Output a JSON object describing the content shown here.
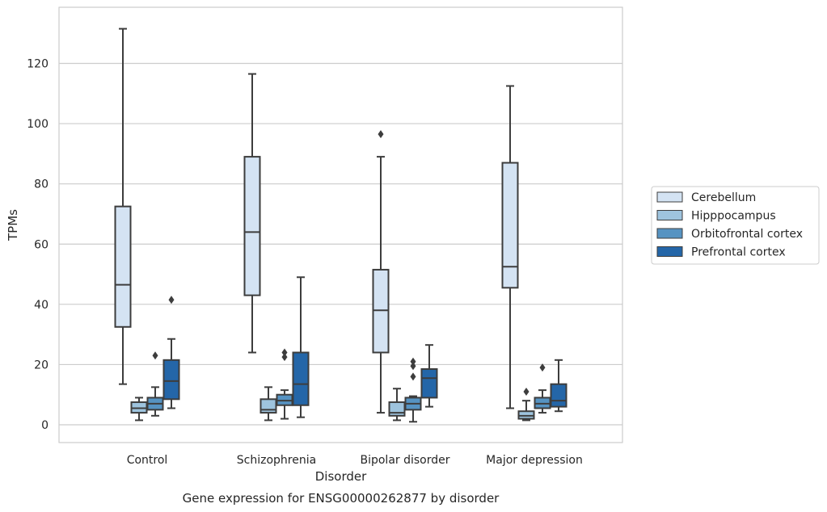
{
  "chart_data": {
    "type": "box",
    "caption": "Gene expression for ENSG00000262877 by disorder",
    "xlabel": "Disorder",
    "ylabel": "TPMs",
    "ylim": [
      -6,
      139
    ],
    "yticks": [
      0,
      20,
      40,
      60,
      80,
      100,
      120
    ],
    "grid": true,
    "legend_position": "right",
    "categories": [
      "Control",
      "Schizophrenia",
      "Bipolar disorder",
      "Major depression"
    ],
    "series": [
      {
        "name": "Cerebellum",
        "color": "#d4e3f3",
        "boxes": [
          {
            "whislo": 13.5,
            "q1": 32.5,
            "med": 46.5,
            "q3": 72.5,
            "whishi": 131.5,
            "fliers": []
          },
          {
            "whislo": 24,
            "q1": 43,
            "med": 64,
            "q3": 89,
            "whishi": 116.5,
            "fliers": []
          },
          {
            "whislo": 4,
            "q1": 24,
            "med": 38,
            "q3": 51.5,
            "whishi": 89,
            "fliers": [
              96.5
            ]
          },
          {
            "whislo": 5.5,
            "q1": 45.5,
            "med": 52.5,
            "q3": 87,
            "whishi": 112.5,
            "fliers": []
          }
        ]
      },
      {
        "name": "Hipppocampus",
        "color": "#9ec4de",
        "boxes": [
          {
            "whislo": 1.5,
            "q1": 4,
            "med": 5.5,
            "q3": 7.5,
            "whishi": 9,
            "fliers": []
          },
          {
            "whislo": 1.5,
            "q1": 4,
            "med": 5,
            "q3": 8.5,
            "whishi": 12.5,
            "fliers": []
          },
          {
            "whislo": 1.5,
            "q1": 3,
            "med": 4,
            "q3": 7.5,
            "whishi": 12,
            "fliers": []
          },
          {
            "whislo": 1.5,
            "q1": 2,
            "med": 3,
            "q3": 4.5,
            "whishi": 8,
            "fliers": [
              11
            ]
          }
        ]
      },
      {
        "name": "Orbitofrontal cortex",
        "color": "#5693c2",
        "boxes": [
          {
            "whislo": 3,
            "q1": 5,
            "med": 7,
            "q3": 9,
            "whishi": 12.5,
            "fliers": [
              23
            ]
          },
          {
            "whislo": 2,
            "q1": 6.5,
            "med": 8,
            "q3": 10,
            "whishi": 11.5,
            "fliers": [
              22.5,
              24
            ]
          },
          {
            "whislo": 1,
            "q1": 5,
            "med": 7,
            "q3": 9,
            "whishi": 9.5,
            "fliers": [
              16,
              19.5,
              21
            ]
          },
          {
            "whislo": 4,
            "q1": 5.5,
            "med": 7,
            "q3": 9,
            "whishi": 11.5,
            "fliers": [
              19
            ]
          }
        ]
      },
      {
        "name": "Prefrontal cortex",
        "color": "#2466a8",
        "boxes": [
          {
            "whislo": 5.5,
            "q1": 8.5,
            "med": 14.5,
            "q3": 21.5,
            "whishi": 28.5,
            "fliers": [
              41.5
            ]
          },
          {
            "whislo": 2.5,
            "q1": 6.5,
            "med": 13.5,
            "q3": 24,
            "whishi": 49,
            "fliers": []
          },
          {
            "whislo": 6,
            "q1": 9,
            "med": 15.5,
            "q3": 18.5,
            "whishi": 26.5,
            "fliers": []
          },
          {
            "whislo": 4.5,
            "q1": 6,
            "med": 8,
            "q3": 13.5,
            "whishi": 21.5,
            "fliers": []
          }
        ]
      }
    ]
  }
}
